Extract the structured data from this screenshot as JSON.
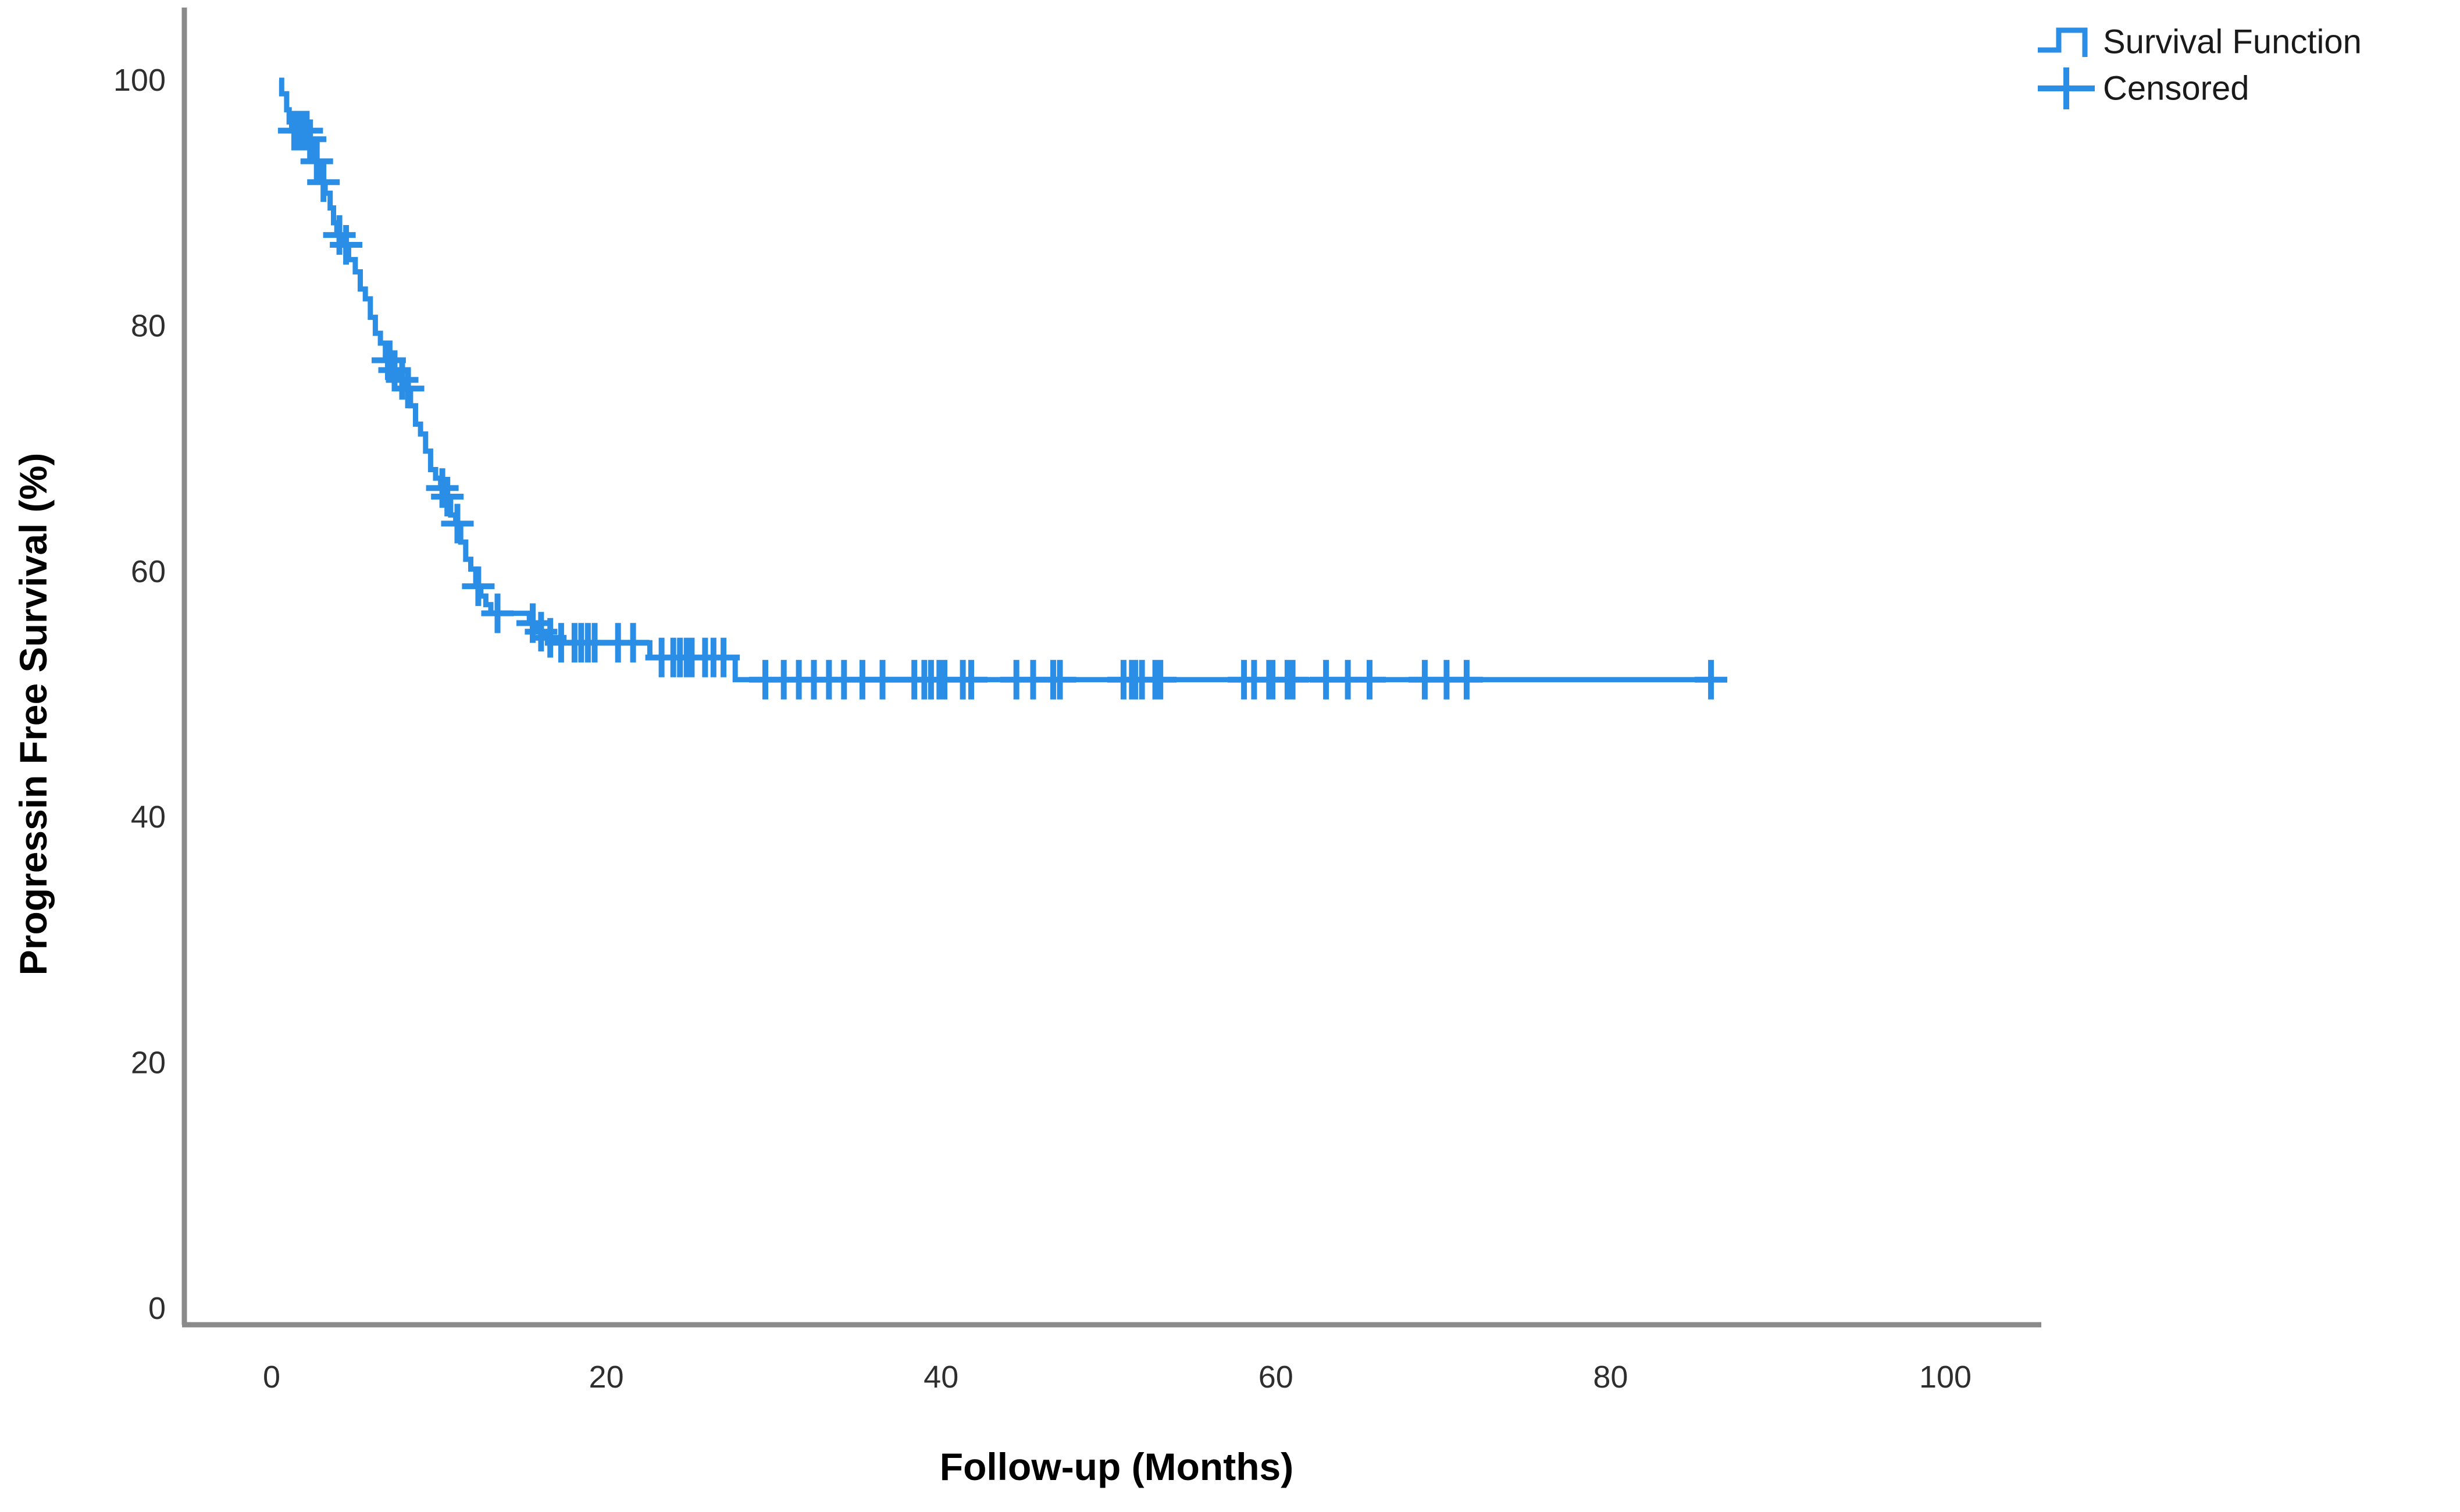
{
  "chart_data": {
    "type": "line",
    "subtype": "kaplan-meier-step",
    "title": "",
    "xlabel": "Follow-up (Months)",
    "ylabel": "Progressin Free Survival (%)",
    "x_ticks": [
      0,
      20,
      40,
      60,
      80,
      100
    ],
    "y_ticks": [
      100,
      80,
      60,
      40,
      20,
      0
    ],
    "xlim": [
      -5,
      106
    ],
    "ylim": [
      -1.5,
      106
    ],
    "grid": false,
    "colors": {
      "curve": "#2b8ee6",
      "axis": "#8a8a8a",
      "tick_text": "#2e2e2e",
      "title_text": "#000000",
      "background": "#ffffff"
    },
    "legend": {
      "position": "top-right",
      "items": [
        {
          "label": "Survival Function",
          "marker": "step-line"
        },
        {
          "label": "Censored",
          "marker": "plus"
        }
      ]
    },
    "series": [
      {
        "name": "Survival Function",
        "color": "#2b8ee6",
        "steps": [
          [
            0.45,
            100
          ],
          [
            0.6,
            98.9
          ],
          [
            0.9,
            97.6
          ],
          [
            1.05,
            96.6
          ],
          [
            1.2,
            95.9
          ],
          [
            2.2,
            95.2
          ],
          [
            2.4,
            94.4
          ],
          [
            2.6,
            93.4
          ],
          [
            2.8,
            92.4
          ],
          [
            3.0,
            91.7
          ],
          [
            3.2,
            90.8
          ],
          [
            3.5,
            89.6
          ],
          [
            3.7,
            88.4
          ],
          [
            3.9,
            87.4
          ],
          [
            4.2,
            86.6
          ],
          [
            4.6,
            85.4
          ],
          [
            5.0,
            84.4
          ],
          [
            5.3,
            83.0
          ],
          [
            5.6,
            82.2
          ],
          [
            5.9,
            80.7
          ],
          [
            6.2,
            79.4
          ],
          [
            6.5,
            78.6
          ],
          [
            6.8,
            77.2
          ],
          [
            7.2,
            76.4
          ],
          [
            7.6,
            75.6
          ],
          [
            8.0,
            74.9
          ],
          [
            8.3,
            73.5
          ],
          [
            8.6,
            72.0
          ],
          [
            8.9,
            71.2
          ],
          [
            9.2,
            69.8
          ],
          [
            9.5,
            68.3
          ],
          [
            9.8,
            67.6
          ],
          [
            10.1,
            66.8
          ],
          [
            10.4,
            66.1
          ],
          [
            10.7,
            64.6
          ],
          [
            11.0,
            63.9
          ],
          [
            11.3,
            62.4
          ],
          [
            11.6,
            61.0
          ],
          [
            11.9,
            60.2
          ],
          [
            12.2,
            58.8
          ],
          [
            12.5,
            58.0
          ],
          [
            12.8,
            57.3
          ],
          [
            13.1,
            56.6
          ],
          [
            15.4,
            55.8
          ],
          [
            15.9,
            55.1
          ],
          [
            16.4,
            54.6
          ],
          [
            17.0,
            54.2
          ],
          [
            22.6,
            53.0
          ],
          [
            27.7,
            51.2
          ],
          [
            86.0,
            51.2
          ]
        ]
      }
    ],
    "censored": {
      "name": "Censored",
      "color": "#2b8ee6",
      "points": [
        [
          1.35,
          95.9
        ],
        [
          1.5,
          95.9
        ],
        [
          1.7,
          95.9
        ],
        [
          1.9,
          95.9
        ],
        [
          2.1,
          95.9
        ],
        [
          2.3,
          95.2
        ],
        [
          2.7,
          93.4
        ],
        [
          3.1,
          91.7
        ],
        [
          4.05,
          87.4
        ],
        [
          4.45,
          86.6
        ],
        [
          6.95,
          77.2
        ],
        [
          7.05,
          77.2
        ],
        [
          7.35,
          76.4
        ],
        [
          7.8,
          75.6
        ],
        [
          8.15,
          74.9
        ],
        [
          10.2,
          66.8
        ],
        [
          10.5,
          66.1
        ],
        [
          11.1,
          63.9
        ],
        [
          12.35,
          58.8
        ],
        [
          13.5,
          56.6
        ],
        [
          15.6,
          55.8
        ],
        [
          16.1,
          55.1
        ],
        [
          16.65,
          54.6
        ],
        [
          17.3,
          54.2
        ],
        [
          18.1,
          54.2
        ],
        [
          18.5,
          54.2
        ],
        [
          18.9,
          54.2
        ],
        [
          19.3,
          54.2
        ],
        [
          20.7,
          54.2
        ],
        [
          21.6,
          54.2
        ],
        [
          23.3,
          53.0
        ],
        [
          24.0,
          53.0
        ],
        [
          24.4,
          53.0
        ],
        [
          24.8,
          53.0
        ],
        [
          25.1,
          53.0
        ],
        [
          25.9,
          53.0
        ],
        [
          26.4,
          53.0
        ],
        [
          27.0,
          53.0
        ],
        [
          29.5,
          51.2
        ],
        [
          30.6,
          51.2
        ],
        [
          31.5,
          51.2
        ],
        [
          32.4,
          51.2
        ],
        [
          33.3,
          51.2
        ],
        [
          34.2,
          51.2
        ],
        [
          35.3,
          51.2
        ],
        [
          36.5,
          51.2
        ],
        [
          38.4,
          51.2
        ],
        [
          39.0,
          51.2
        ],
        [
          39.4,
          51.2
        ],
        [
          39.9,
          51.2
        ],
        [
          40.2,
          51.2
        ],
        [
          41.3,
          51.2
        ],
        [
          41.8,
          51.2
        ],
        [
          44.5,
          51.2
        ],
        [
          45.5,
          51.2
        ],
        [
          46.7,
          51.2
        ],
        [
          47.1,
          51.2
        ],
        [
          50.9,
          51.2
        ],
        [
          51.4,
          51.2
        ],
        [
          51.6,
          51.2
        ],
        [
          52.0,
          51.2
        ],
        [
          52.8,
          51.2
        ],
        [
          53.1,
          51.2
        ],
        [
          58.1,
          51.2
        ],
        [
          58.7,
          51.2
        ],
        [
          59.6,
          51.2
        ],
        [
          59.8,
          51.2
        ],
        [
          60.7,
          51.2
        ],
        [
          61.0,
          51.2
        ],
        [
          63.0,
          51.2
        ],
        [
          64.3,
          51.2
        ],
        [
          65.6,
          51.2
        ],
        [
          68.9,
          51.2
        ],
        [
          70.2,
          51.2
        ],
        [
          71.4,
          51.2
        ],
        [
          86.0,
          51.2
        ]
      ]
    }
  }
}
